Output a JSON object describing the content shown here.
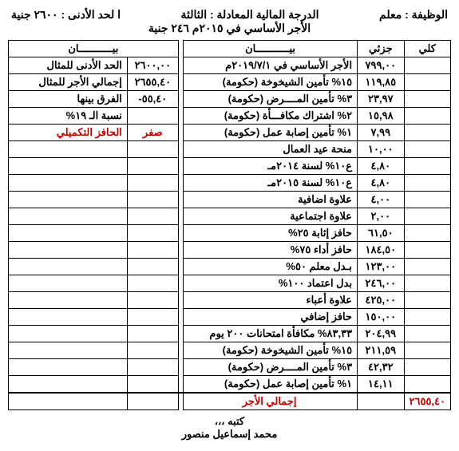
{
  "header": {
    "job_label": "الوظيفة : معلم",
    "grade_label": "الدرجة المالية المعادلة : الثالثة",
    "min_label": "ا لحد الأدنى : ٢٦٠٠ جنية",
    "base_wage": "الأجر الأساسي في ٢٠١٥م ٢٤٦ جنية"
  },
  "cols": {
    "kolli": "كلي",
    "gozee": "جزئي",
    "bayan": "بيـــــــــــان"
  },
  "left_rows": [
    {
      "g": "٧٩٩,٠٠",
      "b": "الأجر الأساسي في ٢٠١٩/٧/١م"
    },
    {
      "g": "١١٩,٨٥",
      "b": "١٥% تأمين الشيخوخة (حكومة)"
    },
    {
      "g": "٢٣,٩٧",
      "b": "٣% تأمين المــــرض (حكومة)"
    },
    {
      "g": "١٥,٩٨",
      "b": "٢% اشتراك مكافـــأة (حكومة)"
    },
    {
      "g": "٧,٩٩",
      "b": "١% تأمين إصابة عمل (حكومة)"
    },
    {
      "g": "١٠,٠٠",
      "b": "منحة عيد العمال"
    },
    {
      "g": "٤,٨٠",
      "b": "ع١٠% لسنة ٢٠١٤مـ"
    },
    {
      "g": "٤,٨٠",
      "b": "ع١٠% لسنة ٢٠١٥مـ"
    },
    {
      "g": "٤,٠٠",
      "b": "علاوة اضافية"
    },
    {
      "g": "٢,٠٠",
      "b": "علاوة اجتماعية"
    },
    {
      "g": "٦١,٥٠",
      "b": "حافز إثابة ٢٥%"
    },
    {
      "g": "١٨٤,٥٠",
      "b": "حافز أداء ٧٥%"
    },
    {
      "g": "١٢٣,٠٠",
      "b": "بـدل معلم ٥٠%"
    },
    {
      "g": "٢٤٦,٠٠",
      "b": "بدل اعتماد ١٠٠%"
    },
    {
      "g": "٤٢٥,٠٠",
      "b": "علاوة أعباء"
    },
    {
      "g": "١٥٠,٠٠",
      "b": "حافز إضافي"
    },
    {
      "g": "٢٠٤,٩٩",
      "b": "٨٣,٣٣% مكافأة امتحانات ٢٠٠ يوم"
    },
    {
      "g": "٢١١,٥٩",
      "b": "١٥% تأمين الشيخوخة (حكومة)"
    },
    {
      "g": "٤٢,٣٢",
      "b": "٣% تأمين المــــرض (حكومة)"
    },
    {
      "g": "١٤,١١",
      "b": "١% تأمين إصابة عمل (حكومة)"
    }
  ],
  "right_rows": [
    {
      "n": "٢٦٠٠,٠٠",
      "b": "الحد الأدنى للمثال"
    },
    {
      "n": "٢٦٥٥,٤٠",
      "b": "إجمالي الأجر للمثال"
    },
    {
      "n": "٥٥,٤٠-",
      "b": "الفرق بينها"
    },
    {
      "n": "",
      "b": "نسبة الـ ١٩%"
    },
    {
      "n": "صفر",
      "b": "الحافز التكميلي",
      "red": true
    }
  ],
  "total": {
    "label": "إجمالي الأجر",
    "value": "٢٦٥٥,٤٠"
  },
  "footer": {
    "line1": "كتبه ،،،",
    "line2": "محمد إسماعيل منصور"
  }
}
